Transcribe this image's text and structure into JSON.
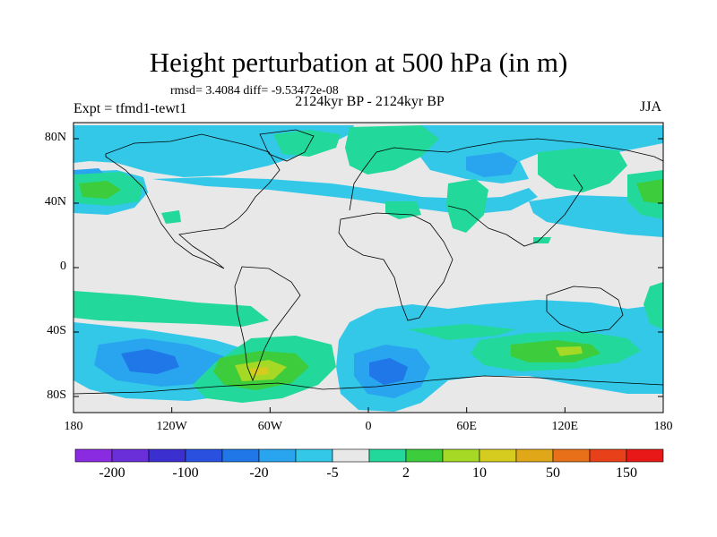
{
  "title": "Height perturbation at 500 hPa (in m)",
  "stats": "rmsd= 3.4084 diff= -9.53472e-08",
  "experiment": "Expt = tfmd1-tewt1",
  "period": "2124kyr BP - 2124kyr BP",
  "season": "JJA",
  "lat_labels": [
    {
      "lat": 80,
      "label": "80N"
    },
    {
      "lat": 40,
      "label": "40N"
    },
    {
      "lat": 0,
      "label": "0"
    },
    {
      "lat": -40,
      "label": "40S"
    },
    {
      "lat": -80,
      "label": "80S"
    }
  ],
  "lon_labels": [
    {
      "lon": -180,
      "label": "180"
    },
    {
      "lon": -120,
      "label": "120W"
    },
    {
      "lon": -60,
      "label": "60W"
    },
    {
      "lon": 0,
      "label": "0"
    },
    {
      "lon": 60,
      "label": "60E"
    },
    {
      "lon": 120,
      "label": "120E"
    },
    {
      "lon": 180,
      "label": "180"
    }
  ],
  "colorbar": {
    "colors": [
      "#8a2be2",
      "#6a2fd9",
      "#3c2fd0",
      "#2a50e0",
      "#1f77e8",
      "#29a5f0",
      "#33c8e8",
      "#e8e8e8",
      "#22d89a",
      "#3ccc3c",
      "#a6d826",
      "#d6cc20",
      "#e0a818",
      "#e87018",
      "#e84018",
      "#e81818"
    ],
    "labels": [
      {
        "boundary": 1,
        "label": "-200"
      },
      {
        "boundary": 3,
        "label": "-100"
      },
      {
        "boundary": 5,
        "label": "-20"
      },
      {
        "boundary": 7,
        "label": "-5"
      },
      {
        "boundary": 9,
        "label": "2"
      },
      {
        "boundary": 11,
        "label": "10"
      },
      {
        "boundary": 13,
        "label": "50"
      },
      {
        "boundary": 15,
        "label": "150"
      }
    ]
  },
  "fill_colors": {
    "background": "#e8e8e8",
    "light_blue": "#33c8e8",
    "blue": "#29a5f0",
    "mid_blue": "#1f77e8",
    "teal": "#22d89a",
    "green": "#3ccc3c",
    "yellow_green": "#a6d826",
    "yellow": "#d6cc20"
  }
}
